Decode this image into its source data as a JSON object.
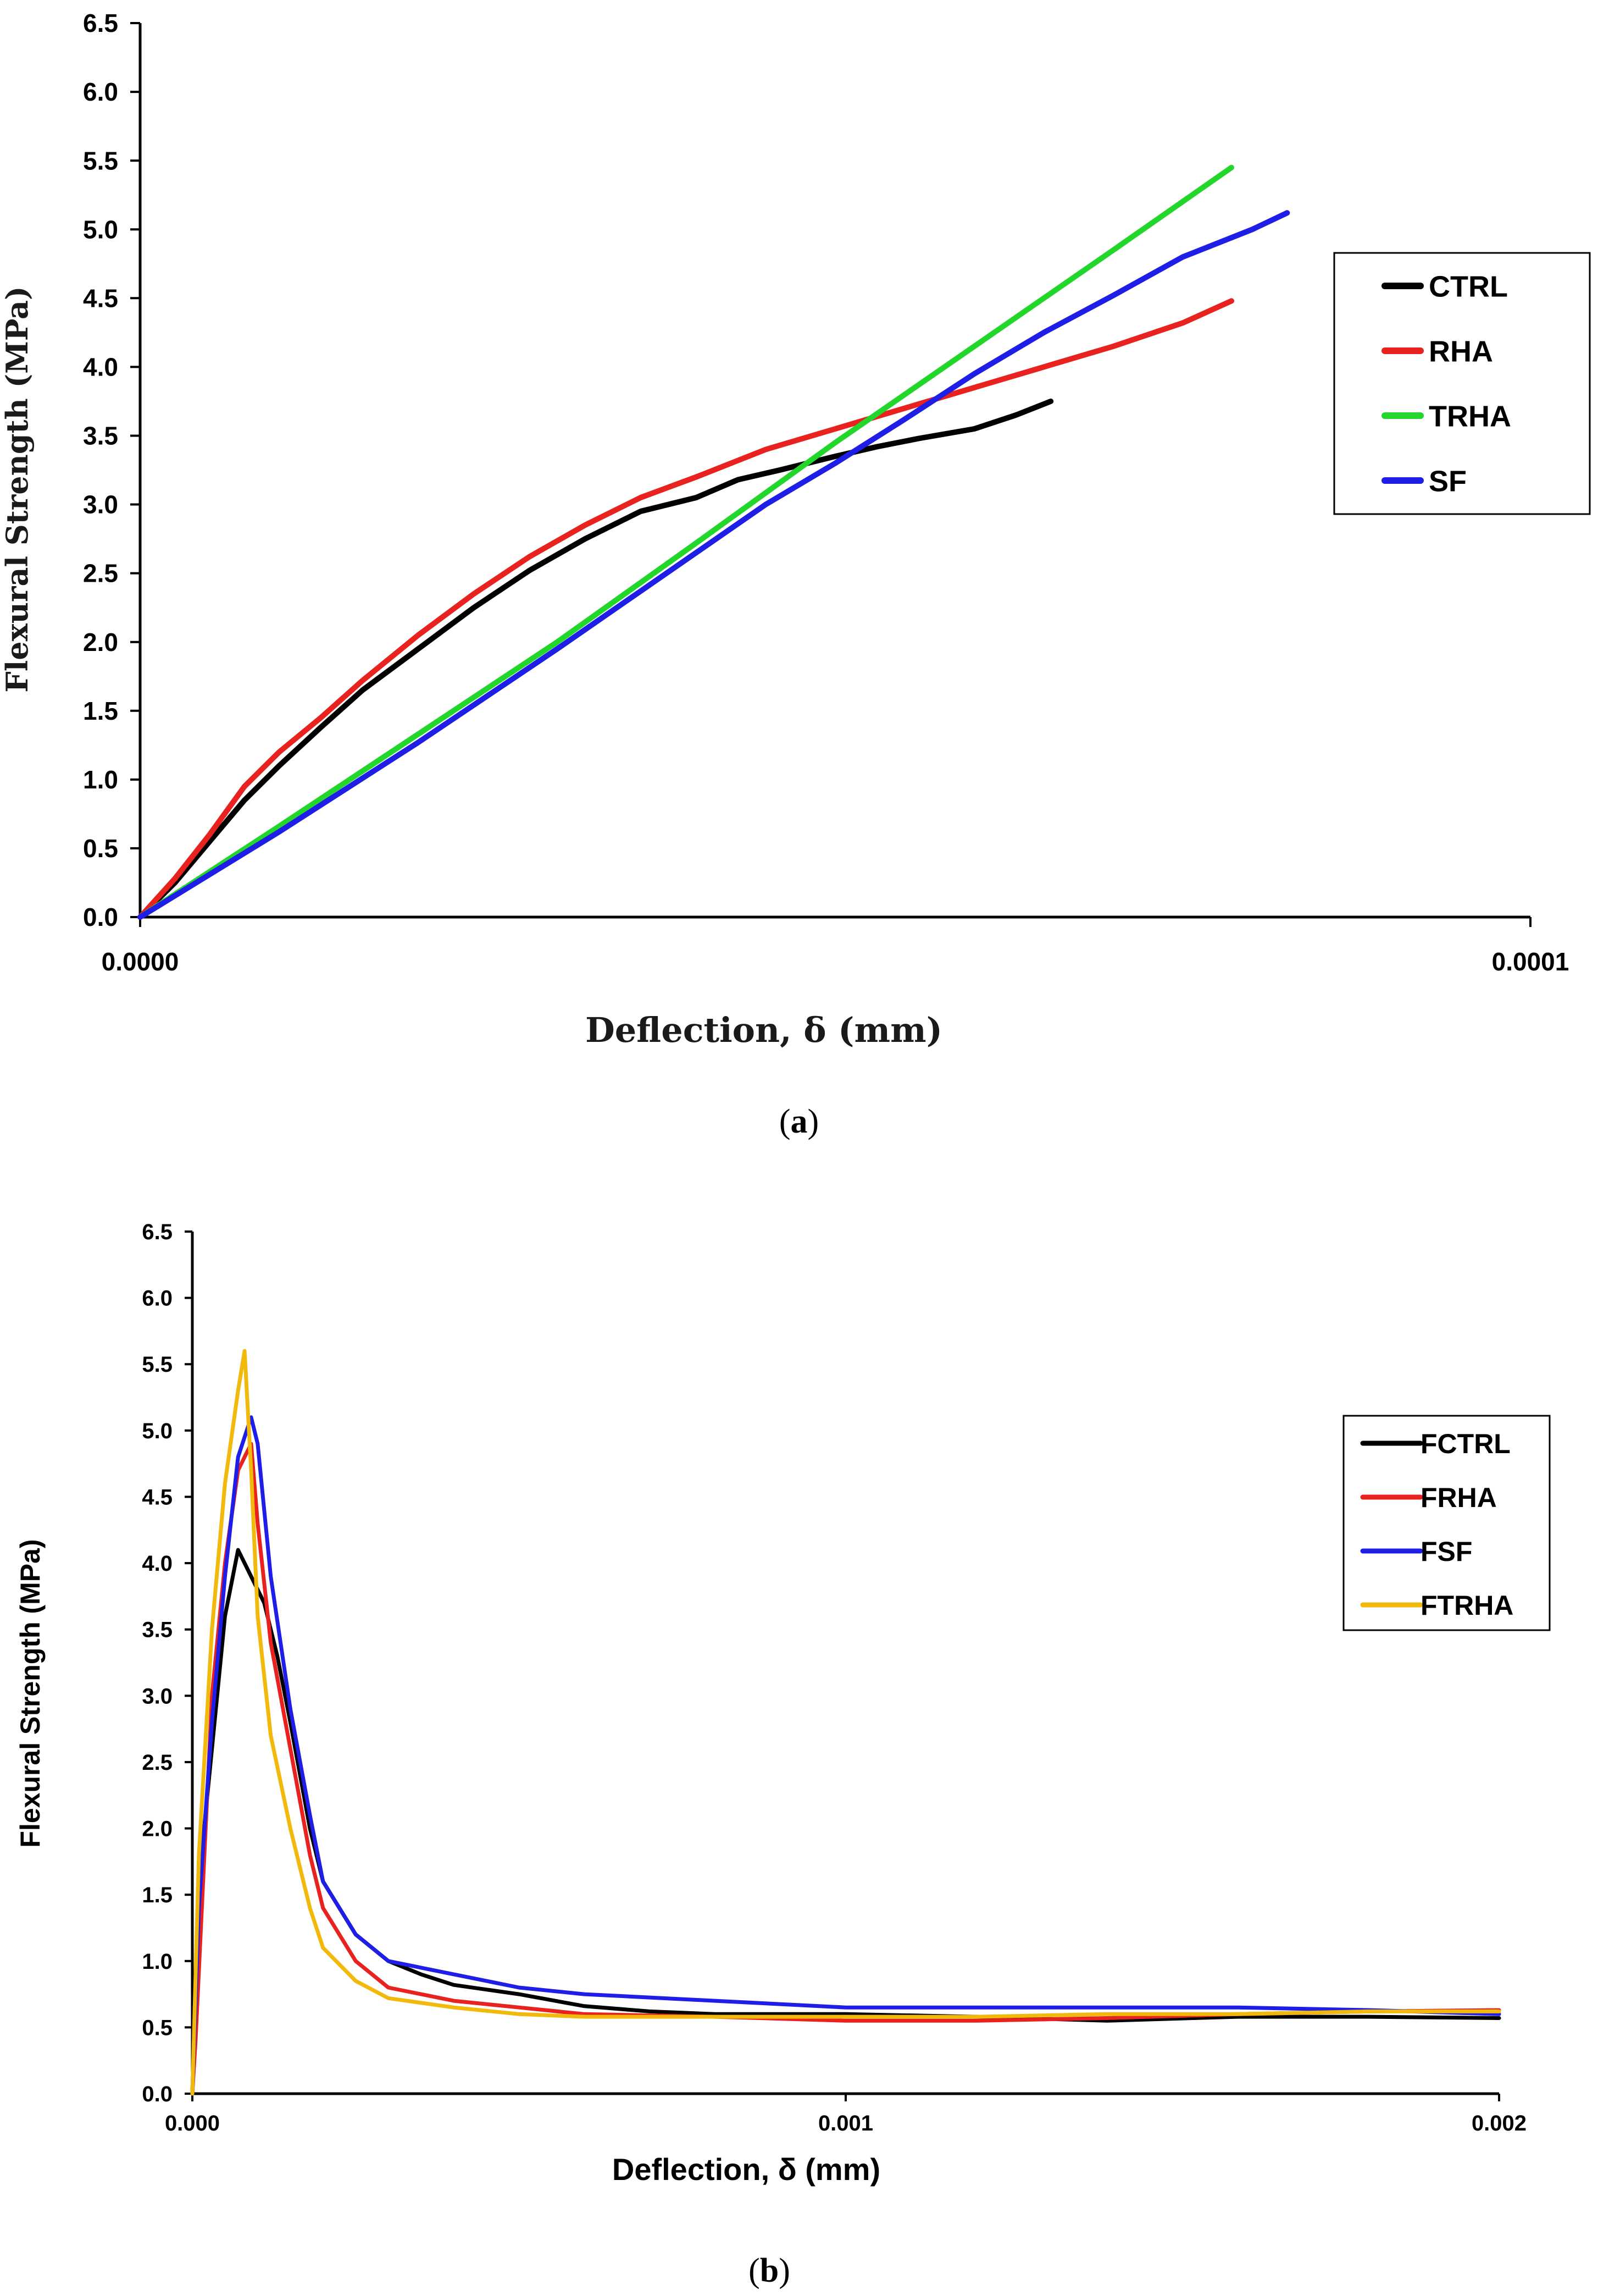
{
  "chart_data": [
    {
      "type": "line",
      "panel_caption": "(a)",
      "caption_letter": "a",
      "xlabel": "Deflection, δ (mm)",
      "ylabel": "Flexural Strength (MPa)",
      "xlim": [
        0,
        0.0001
      ],
      "ylim": [
        0,
        6.5
      ],
      "x_ticks": [
        0,
        0.0001
      ],
      "x_tick_labels": [
        "0.0000",
        "0.0001"
      ],
      "y_ticks": [
        0,
        0.5,
        1,
        1.5,
        2,
        2.5,
        3,
        3.5,
        4,
        4.5,
        5,
        5.5,
        6,
        6.5
      ],
      "y_tick_labels": [
        "0.0",
        "0.5",
        "1.0",
        "1.5",
        "2.0",
        "2.5",
        "3.0",
        "3.5",
        "4.0",
        "4.5",
        "5.0",
        "5.5",
        "6.0",
        "6.5"
      ],
      "legend_position": "right",
      "series": [
        {
          "name": "CTRL",
          "color": "#000000",
          "x": [
            0,
            2.5e-06,
            5e-06,
            7.5e-06,
            1e-05,
            1.3e-05,
            1.6e-05,
            2e-05,
            2.4e-05,
            2.8e-05,
            3.2e-05,
            3.6e-05,
            4e-05,
            4.3e-05,
            4.6e-05,
            5e-05,
            5.3e-05,
            5.6e-05,
            6e-05,
            6.3e-05,
            6.55e-05
          ],
          "y": [
            0,
            0.25,
            0.55,
            0.85,
            1.1,
            1.38,
            1.65,
            1.95,
            2.25,
            2.52,
            2.75,
            2.95,
            3.05,
            3.18,
            3.25,
            3.35,
            3.42,
            3.48,
            3.55,
            3.65,
            3.75
          ]
        },
        {
          "name": "RHA",
          "color": "#e8231f",
          "x": [
            0,
            2.5e-06,
            5e-06,
            7.5e-06,
            1e-05,
            1.3e-05,
            1.6e-05,
            2e-05,
            2.4e-05,
            2.8e-05,
            3.2e-05,
            3.6e-05,
            4e-05,
            4.5e-05,
            5e-05,
            5.5e-05,
            6e-05,
            6.5e-05,
            7e-05,
            7.5e-05,
            7.85e-05
          ],
          "y": [
            0,
            0.28,
            0.6,
            0.95,
            1.2,
            1.45,
            1.72,
            2.05,
            2.35,
            2.62,
            2.85,
            3.05,
            3.2,
            3.4,
            3.55,
            3.7,
            3.85,
            4.0,
            4.15,
            4.32,
            4.48
          ]
        },
        {
          "name": "TRHA",
          "color": "#22d62b",
          "x": [
            0,
            1e-05,
            2e-05,
            3e-05,
            4e-05,
            5e-05,
            6e-05,
            7e-05,
            7.85e-05
          ],
          "y": [
            0,
            0.66,
            1.33,
            2.0,
            2.72,
            3.45,
            4.15,
            4.85,
            5.45
          ]
        },
        {
          "name": "SF",
          "color": "#1e1ee6",
          "x": [
            0,
            1e-05,
            2e-05,
            3e-05,
            4e-05,
            4.5e-05,
            5e-05,
            5.5e-05,
            6e-05,
            6.5e-05,
            7e-05,
            7.5e-05,
            8e-05,
            8.25e-05
          ],
          "y": [
            0,
            0.62,
            1.27,
            1.95,
            2.65,
            3.0,
            3.3,
            3.62,
            3.95,
            4.25,
            4.52,
            4.8,
            5.0,
            5.12
          ]
        }
      ]
    },
    {
      "type": "line",
      "panel_caption": "(b)",
      "caption_letter": "b",
      "xlabel": "Deflection, δ (mm)",
      "ylabel": "Flexural Strength (MPa)",
      "xlim": [
        0,
        0.002
      ],
      "ylim": [
        0,
        6.5
      ],
      "x_ticks": [
        0,
        0.001,
        0.002
      ],
      "x_tick_labels": [
        "0.000",
        "0.001",
        "0.002"
      ],
      "y_ticks": [
        0,
        0.5,
        1,
        1.5,
        2,
        2.5,
        3,
        3.5,
        4,
        4.5,
        5,
        5.5,
        6,
        6.5
      ],
      "y_tick_labels": [
        "0.0",
        "0.5",
        "1.0",
        "1.5",
        "2.0",
        "2.5",
        "3.0",
        "3.5",
        "4.0",
        "4.5",
        "5.0",
        "5.5",
        "6.0",
        "6.5"
      ],
      "legend_position": "right",
      "series": [
        {
          "name": "FCTRL",
          "color": "#000000",
          "x": [
            0,
            1e-05,
            3e-05,
            5e-05,
            7e-05,
            9e-05,
            0.00011,
            0.00013,
            0.00015,
            0.00018,
            0.0002,
            0.00025,
            0.0003,
            0.00035,
            0.0004,
            0.0005,
            0.0006,
            0.0007,
            0.0008,
            0.001,
            0.0012,
            0.0014,
            0.0016,
            0.0018,
            0.002
          ],
          "y": [
            0,
            1.6,
            2.6,
            3.6,
            4.1,
            3.9,
            3.7,
            3.3,
            2.8,
            2.0,
            1.6,
            1.2,
            1.0,
            0.9,
            0.82,
            0.75,
            0.66,
            0.62,
            0.6,
            0.6,
            0.58,
            0.55,
            0.58,
            0.58,
            0.57
          ]
        },
        {
          "name": "FRHA",
          "color": "#e8231f",
          "x": [
            0,
            5e-06,
            3e-05,
            5e-05,
            7e-05,
            9e-05,
            0.0001,
            0.00012,
            0.00015,
            0.00018,
            0.0002,
            0.00025,
            0.0003,
            0.0004,
            0.0005,
            0.0006,
            0.0008,
            0.001,
            0.0012,
            0.0014,
            0.0016,
            0.0018,
            0.002
          ],
          "y": [
            0,
            0.4,
            3.0,
            4.0,
            4.7,
            4.9,
            4.3,
            3.4,
            2.6,
            1.8,
            1.4,
            1.0,
            0.8,
            0.7,
            0.65,
            0.6,
            0.58,
            0.55,
            0.55,
            0.57,
            0.6,
            0.62,
            0.63
          ]
        },
        {
          "name": "FSF",
          "color": "#1e1ee6",
          "x": [
            0,
            1e-05,
            3e-05,
            5e-05,
            7e-05,
            9e-05,
            0.0001,
            0.00012,
            0.00015,
            0.00018,
            0.0002,
            0.00025,
            0.0003,
            0.0004,
            0.0005,
            0.0006,
            0.0008,
            0.001,
            0.0012,
            0.0014,
            0.0016,
            0.0018,
            0.002
          ],
          "y": [
            0,
            1.4,
            2.8,
            3.9,
            4.8,
            5.1,
            4.9,
            3.9,
            2.9,
            2.1,
            1.6,
            1.2,
            1.0,
            0.9,
            0.8,
            0.75,
            0.7,
            0.65,
            0.65,
            0.65,
            0.65,
            0.63,
            0.6
          ]
        },
        {
          "name": "FTRHA",
          "color": "#f2b90d",
          "x": [
            0,
            1e-05,
            3e-05,
            5e-05,
            7e-05,
            8e-05,
            9e-05,
            0.0001,
            0.00012,
            0.00015,
            0.00018,
            0.0002,
            0.00025,
            0.0003,
            0.0004,
            0.0005,
            0.0006,
            0.0008,
            0.001,
            0.0012,
            0.0014,
            0.0016,
            0.0018,
            0.002
          ],
          "y": [
            0,
            1.8,
            3.5,
            4.6,
            5.3,
            5.6,
            4.7,
            3.6,
            2.7,
            2.0,
            1.4,
            1.1,
            0.85,
            0.72,
            0.65,
            0.6,
            0.58,
            0.58,
            0.58,
            0.58,
            0.6,
            0.6,
            0.62,
            0.62
          ]
        }
      ]
    }
  ]
}
